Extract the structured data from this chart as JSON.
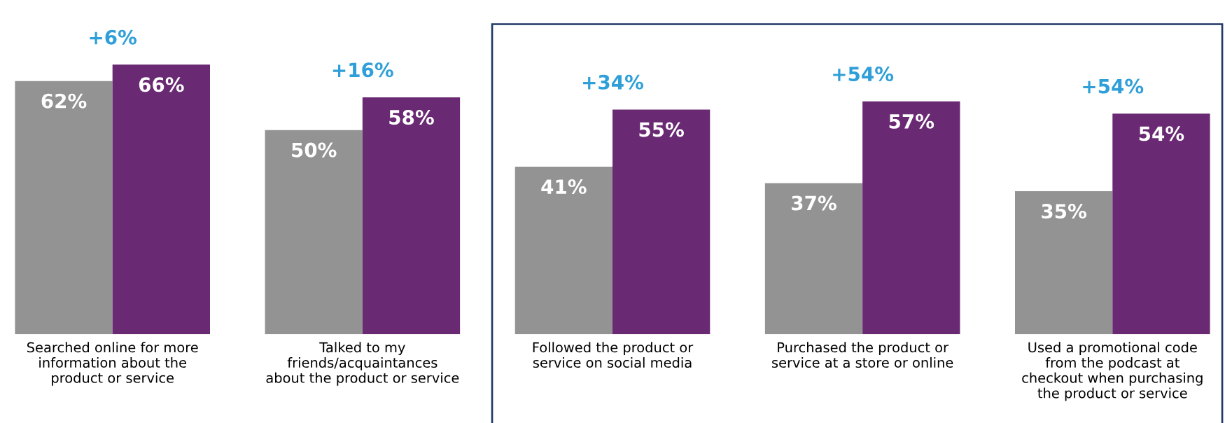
{
  "chart_data": {
    "type": "bar",
    "categories": [
      "Searched online for more\ninformation about the\nproduct or service",
      "Talked to my\nfriends/acquaintances\nabout the product or service",
      "Followed the product or\nservice on social media",
      "Purchased the product or\nservice at a store or online",
      "Used a promotional code\nfrom the podcast at\ncheckout when purchasing\nthe product or service"
    ],
    "series": [
      {
        "color": "#939393",
        "values": [
          62,
          50,
          41,
          37,
          35
        ],
        "value_labels": [
          "62%",
          "50%",
          "41%",
          "37%",
          "35%"
        ]
      },
      {
        "color": "#6a2a73",
        "values": [
          66,
          58,
          55,
          57,
          54
        ],
        "value_labels": [
          "66%",
          "58%",
          "55%",
          "57%",
          "54%"
        ]
      }
    ],
    "annotations": [
      {
        "text": "+6%",
        "x": "Searched online for more\ninformation about the\nproduct or service",
        "y": 66
      },
      {
        "text": "+16%",
        "x": "Talked to my\nfriends/acquaintances\nabout the product or service",
        "y": 58
      },
      {
        "text": "+34%",
        "x": "Followed the product or\nservice on social media",
        "y": 55
      },
      {
        "text": "+54%",
        "x": "Purchased the product or\nservice at a store or online",
        "y": 57
      },
      {
        "text": "+54%",
        "x": "Used a promotional code\nfrom the podcast at\ncheckout when purchasing\nthe product or service",
        "y": 54
      }
    ],
    "data_labels": true,
    "grid": false,
    "legend": false
  }
}
